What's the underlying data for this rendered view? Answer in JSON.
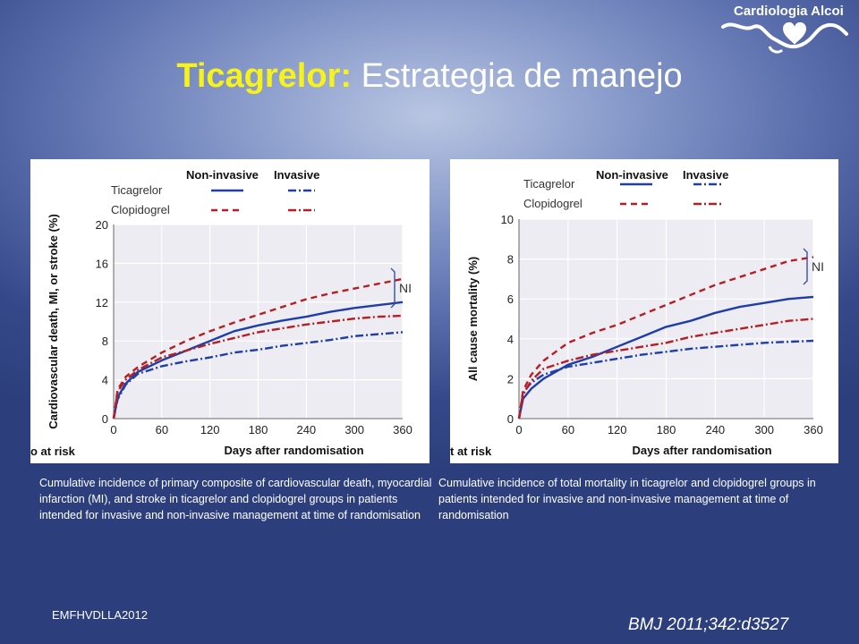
{
  "logo": {
    "text": "Cardiologia Alcoi"
  },
  "title": {
    "highlight": "Ticagrelor:",
    "rest": "Estrategia de manejo"
  },
  "chart_data": [
    {
      "type": "line",
      "ylabel": "Cardiovascular death, MI, or stroke (%)",
      "xlabel": "Days after randomisation",
      "bottom_label": "o at risk",
      "legend_headers": [
        "Non-invasive",
        "Invasive"
      ],
      "legend_rows": [
        "Ticagrelor",
        "Clopidogrel"
      ],
      "annotation": "NI",
      "x_ticks": [
        0,
        60,
        120,
        180,
        240,
        300,
        360
      ],
      "y_ticks": [
        0,
        4,
        8,
        12,
        16,
        20
      ],
      "xlim": [
        0,
        360
      ],
      "ylim": [
        0,
        20
      ],
      "grid": true,
      "colors": {
        "ticagrelor": "#1f3ea8",
        "clopidogrel": "#b51f24"
      },
      "series": [
        {
          "drug": "ticagrelor",
          "strategy": "non-invasive",
          "dash": "solid",
          "x": [
            0,
            5,
            15,
            30,
            60,
            90,
            120,
            150,
            180,
            210,
            240,
            270,
            300,
            330,
            360
          ],
          "y": [
            0,
            2.2,
            3.6,
            4.8,
            6.0,
            7.0,
            8.0,
            9.0,
            9.6,
            10.1,
            10.5,
            11.0,
            11.4,
            11.7,
            12.0
          ]
        },
        {
          "drug": "ticagrelor",
          "strategy": "invasive",
          "dash": "dashdot",
          "x": [
            0,
            5,
            15,
            30,
            60,
            90,
            120,
            150,
            180,
            210,
            240,
            270,
            300,
            330,
            360
          ],
          "y": [
            0,
            2.0,
            3.5,
            4.6,
            5.4,
            5.9,
            6.3,
            6.8,
            7.1,
            7.5,
            7.8,
            8.1,
            8.5,
            8.7,
            8.9
          ]
        },
        {
          "drug": "clopidogrel",
          "strategy": "non-invasive",
          "dash": "dashed",
          "x": [
            0,
            5,
            15,
            30,
            60,
            90,
            120,
            150,
            180,
            210,
            240,
            270,
            300,
            330,
            360
          ],
          "y": [
            0,
            3.0,
            4.3,
            5.3,
            6.8,
            8.0,
            9.0,
            9.9,
            10.7,
            11.5,
            12.3,
            12.9,
            13.4,
            13.9,
            14.4
          ]
        },
        {
          "drug": "clopidogrel",
          "strategy": "invasive",
          "dash": "dashdot",
          "x": [
            0,
            5,
            15,
            30,
            60,
            90,
            120,
            150,
            180,
            210,
            240,
            270,
            300,
            330,
            360
          ],
          "y": [
            0,
            2.8,
            4.0,
            5.0,
            6.3,
            7.0,
            7.7,
            8.3,
            8.9,
            9.3,
            9.7,
            10.0,
            10.3,
            10.5,
            10.6
          ]
        }
      ]
    },
    {
      "type": "line",
      "ylabel": "All cause mortality (%)",
      "xlabel": "Days after randomisation",
      "bottom_label": "t at risk",
      "legend_headers": [
        "Non-invasive",
        "Invasive"
      ],
      "legend_rows": [
        "Ticagrelor",
        "Clopidogrel"
      ],
      "annotation": "NI",
      "x_ticks": [
        0,
        60,
        120,
        180,
        240,
        300,
        360
      ],
      "y_ticks": [
        0,
        2,
        4,
        6,
        8,
        10
      ],
      "xlim": [
        0,
        360
      ],
      "ylim": [
        0,
        10
      ],
      "grid": true,
      "colors": {
        "ticagrelor": "#1f3ea8",
        "clopidogrel": "#b51f24"
      },
      "series": [
        {
          "drug": "ticagrelor",
          "strategy": "non-invasive",
          "dash": "solid",
          "x": [
            0,
            5,
            15,
            30,
            60,
            90,
            120,
            150,
            180,
            210,
            240,
            270,
            300,
            330,
            360
          ],
          "y": [
            0,
            1.0,
            1.5,
            2.0,
            2.7,
            3.1,
            3.6,
            4.1,
            4.6,
            4.9,
            5.3,
            5.6,
            5.8,
            6.0,
            6.1
          ]
        },
        {
          "drug": "ticagrelor",
          "strategy": "invasive",
          "dash": "dashdot",
          "x": [
            0,
            5,
            15,
            30,
            60,
            90,
            120,
            150,
            180,
            210,
            240,
            270,
            300,
            330,
            360
          ],
          "y": [
            0,
            1.3,
            1.8,
            2.2,
            2.6,
            2.8,
            3.0,
            3.2,
            3.35,
            3.5,
            3.6,
            3.7,
            3.8,
            3.85,
            3.9
          ]
        },
        {
          "drug": "clopidogrel",
          "strategy": "non-invasive",
          "dash": "dashed",
          "x": [
            0,
            5,
            15,
            30,
            60,
            90,
            120,
            150,
            180,
            210,
            240,
            270,
            300,
            330,
            360
          ],
          "y": [
            0,
            1.4,
            2.2,
            2.9,
            3.8,
            4.3,
            4.7,
            5.2,
            5.7,
            6.2,
            6.7,
            7.1,
            7.5,
            7.9,
            8.1
          ]
        },
        {
          "drug": "clopidogrel",
          "strategy": "invasive",
          "dash": "dashdot",
          "x": [
            0,
            5,
            15,
            30,
            60,
            90,
            120,
            150,
            180,
            210,
            240,
            270,
            300,
            330,
            360
          ],
          "y": [
            0,
            1.2,
            1.9,
            2.5,
            2.9,
            3.2,
            3.4,
            3.6,
            3.8,
            4.1,
            4.3,
            4.5,
            4.7,
            4.9,
            5.0
          ]
        }
      ]
    }
  ],
  "captions": [
    "Cumulative incidence of primary composite of cardiovascular death, myocardial infarction (MI), and stroke in ticagrelor and clopidogrel groups in patients intended for invasive and non-invasive management at time of randomisation",
    "Cumulative incidence of total mortality in ticagrelor and clopidogrel groups in patients intended for invasive and non-invasive management at time of randomisation"
  ],
  "footer": "EMFHVDLLA2012",
  "reference": "BMJ 2011;342:d3527"
}
